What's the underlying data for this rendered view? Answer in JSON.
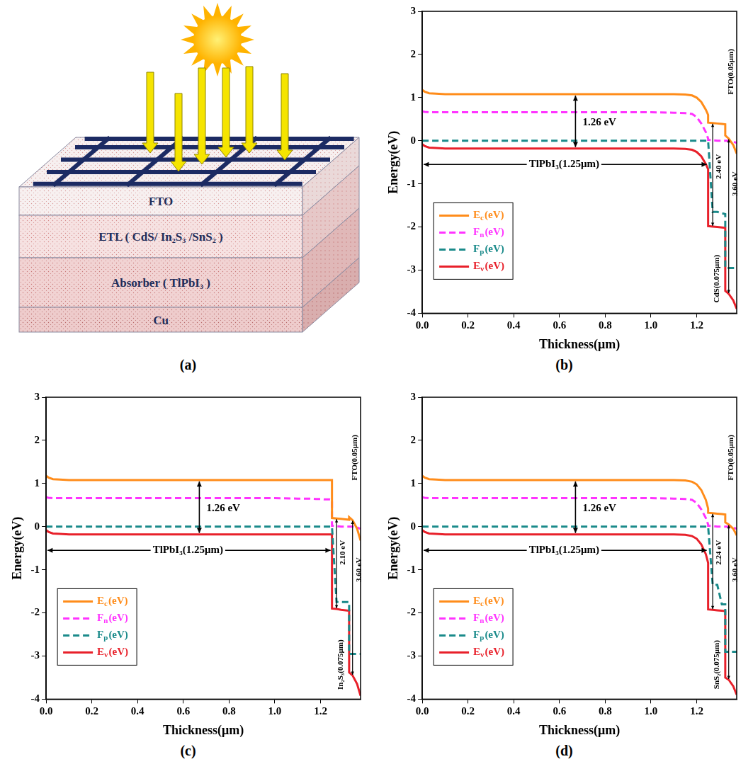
{
  "diagram": {
    "panel_label": "(a)",
    "layers": [
      "FTO",
      "ETL ( CdS/ In₂S₃ /SnS₂ )",
      "Absorber ( TlPbI₃ )",
      "Cu"
    ]
  },
  "chart_data": [
    {
      "type": "line",
      "panel_label": "(b)",
      "x_label": "Thickness(μm)",
      "y_label": "Energy(eV)",
      "x": [
        0,
        0.01,
        0.03,
        0.06,
        0.1,
        1.0,
        1.1,
        1.15,
        1.18,
        1.2,
        1.22,
        1.24,
        1.25,
        1.25,
        1.27,
        1.29,
        1.31,
        1.325,
        1.325,
        1.34,
        1.36,
        1.375
      ],
      "series": [
        {
          "name": "Ec(eV)",
          "color": "#ff8c1a",
          "line_style": "solid",
          "values": [
            1.18,
            1.14,
            1.1,
            1.09,
            1.08,
            1.08,
            1.08,
            1.07,
            1.05,
            1.0,
            0.9,
            0.72,
            0.6,
            0.42,
            0.41,
            0.4,
            0.39,
            0.38,
            0.12,
            0.05,
            -0.1,
            -0.3
          ]
        },
        {
          "name": "Fn(eV)",
          "color": "#ff33ff",
          "line_style": "dashed",
          "values": [
            0.68,
            0.67,
            0.66,
            0.66,
            0.66,
            0.66,
            0.65,
            0.64,
            0.62,
            0.55,
            0.4,
            0.2,
            0.05,
            0.02,
            0.01,
            0,
            0,
            0,
            0,
            0,
            -0.02,
            -0.05
          ]
        },
        {
          "name": "Fp(eV)",
          "color": "#1a8a8a",
          "line_style": "dashed",
          "values": [
            0,
            0,
            0,
            0,
            0,
            0,
            0,
            0,
            0,
            0,
            0,
            0,
            0,
            0,
            -1.65,
            -1.65,
            -1.68,
            -1.7,
            -2.95,
            -2.95,
            -2.95,
            -2.95
          ]
        },
        {
          "name": "Ev(eV)",
          "color": "#e8202a",
          "line_style": "solid",
          "values": [
            -0.08,
            -0.12,
            -0.16,
            -0.17,
            -0.18,
            -0.18,
            -0.18,
            -0.19,
            -0.21,
            -0.26,
            -0.36,
            -0.54,
            -0.66,
            -1.98,
            -1.99,
            -2.0,
            -2.01,
            -2.02,
            -3.48,
            -3.55,
            -3.7,
            -3.9
          ]
        }
      ],
      "xlim": [
        0,
        1.375
      ],
      "xticks": [
        {
          "value": 0,
          "label": "0.0"
        },
        {
          "value": 0.2,
          "label": "0.2"
        },
        {
          "value": 0.4,
          "label": "0.4"
        },
        {
          "value": 0.6,
          "label": "0.6"
        },
        {
          "value": 0.8,
          "label": "0.8"
        },
        {
          "value": 1.0,
          "label": "1.0"
        },
        {
          "value": 1.2,
          "label": "1.2"
        }
      ],
      "ylim": [
        -4,
        3
      ],
      "yticks": [
        -4,
        -3,
        -2,
        -1,
        0,
        1,
        2,
        3
      ],
      "grid": false,
      "legend": "lower left",
      "annotations": {
        "bandgap": "1.26 eV",
        "absorber": "TlPbI₃(1.25μm)",
        "etl": "CdS(0.075μm)",
        "etl_gap": "2.40 eV",
        "fto": "FTO(0.05μm)",
        "fto_gap": "3.60 eV"
      }
    },
    {
      "type": "line",
      "panel_label": "(c)",
      "x_label": "Thickness(μm)",
      "y_label": "Energy(eV)",
      "x": [
        0,
        0.01,
        0.03,
        0.06,
        0.1,
        1.0,
        1.1,
        1.15,
        1.18,
        1.2,
        1.22,
        1.24,
        1.25,
        1.25,
        1.27,
        1.29,
        1.31,
        1.325,
        1.325,
        1.34,
        1.36,
        1.375
      ],
      "series": [
        {
          "name": "Ec(eV)",
          "color": "#ff8c1a",
          "line_style": "solid",
          "values": [
            1.18,
            1.14,
            1.1,
            1.09,
            1.08,
            1.08,
            1.08,
            1.08,
            1.08,
            1.08,
            1.08,
            1.08,
            1.08,
            0.2,
            0.19,
            0.18,
            0.17,
            0.16,
            0.22,
            0.15,
            -0.05,
            -0.32
          ]
        },
        {
          "name": "Fn(eV)",
          "color": "#ff33ff",
          "line_style": "dashed",
          "values": [
            0.68,
            0.67,
            0.66,
            0.66,
            0.66,
            0.66,
            0.65,
            0.65,
            0.64,
            0.64,
            0.63,
            0.63,
            0.62,
            0.02,
            0.01,
            0,
            0,
            0,
            0,
            0,
            -0.02,
            -0.05
          ]
        },
        {
          "name": "Fp(eV)",
          "color": "#1a8a8a",
          "line_style": "dashed",
          "values": [
            0,
            0,
            0,
            0,
            0,
            0,
            0,
            0,
            0,
            0,
            0,
            0,
            0,
            0,
            -1.75,
            -1.75,
            -1.75,
            -1.75,
            -2.95,
            -2.95,
            -2.95,
            -2.95
          ]
        },
        {
          "name": "Ev(eV)",
          "color": "#e8202a",
          "line_style": "solid",
          "values": [
            -0.08,
            -0.12,
            -0.16,
            -0.17,
            -0.18,
            -0.18,
            -0.18,
            -0.18,
            -0.18,
            -0.18,
            -0.18,
            -0.18,
            -0.18,
            -1.9,
            -1.91,
            -1.93,
            -1.94,
            -1.95,
            -3.38,
            -3.45,
            -3.65,
            -3.92
          ]
        }
      ],
      "xlim": [
        0,
        1.375
      ],
      "xticks": [
        {
          "value": 0,
          "label": "0.0"
        },
        {
          "value": 0.2,
          "label": "0.2"
        },
        {
          "value": 0.4,
          "label": "0.4"
        },
        {
          "value": 0.6,
          "label": "0.6"
        },
        {
          "value": 0.8,
          "label": "0.8"
        },
        {
          "value": 1.0,
          "label": "1.0"
        },
        {
          "value": 1.2,
          "label": "1.2"
        }
      ],
      "ylim": [
        -4,
        3
      ],
      "yticks": [
        -4,
        -3,
        -2,
        -1,
        0,
        1,
        2,
        3
      ],
      "grid": false,
      "legend": "lower left",
      "annotations": {
        "bandgap": "1.26 eV",
        "absorber": "TlPbI₃(1.25μm)",
        "etl": "In₂S₃(0.075μm)",
        "etl_gap": "2.10 eV",
        "fto": "FTO(0.05μm)",
        "fto_gap": "3.60 eV"
      }
    },
    {
      "type": "line",
      "panel_label": "(d)",
      "x_label": "Thickness(μm)",
      "y_label": "Energy(eV)",
      "x": [
        0,
        0.01,
        0.03,
        0.06,
        0.1,
        1.0,
        1.1,
        1.15,
        1.18,
        1.2,
        1.22,
        1.24,
        1.25,
        1.25,
        1.27,
        1.29,
        1.31,
        1.325,
        1.325,
        1.34,
        1.36,
        1.375
      ],
      "series": [
        {
          "name": "Ec(eV)",
          "color": "#ff8c1a",
          "line_style": "solid",
          "values": [
            1.18,
            1.14,
            1.1,
            1.09,
            1.08,
            1.08,
            1.08,
            1.07,
            1.04,
            0.98,
            0.85,
            0.62,
            0.42,
            0.32,
            0.31,
            0.3,
            0.29,
            0.28,
            0.1,
            0.05,
            -0.05,
            -0.2
          ]
        },
        {
          "name": "Fn(eV)",
          "color": "#ff33ff",
          "line_style": "dashed",
          "values": [
            0.68,
            0.67,
            0.66,
            0.66,
            0.66,
            0.66,
            0.65,
            0.64,
            0.62,
            0.55,
            0.4,
            0.2,
            0.05,
            0.02,
            0.01,
            0,
            0,
            0,
            0,
            0,
            -0.02,
            -0.05
          ]
        },
        {
          "name": "Fp(eV)",
          "color": "#1a8a8a",
          "line_style": "dashed",
          "values": [
            0,
            0,
            0,
            0,
            0,
            0,
            0,
            0,
            0,
            0,
            0,
            0,
            0,
            0,
            -1.35,
            -1.35,
            -1.8,
            -1.8,
            -2.9,
            -2.9,
            -2.9,
            -2.9
          ]
        },
        {
          "name": "Ev(eV)",
          "color": "#e8202a",
          "line_style": "solid",
          "values": [
            -0.08,
            -0.12,
            -0.16,
            -0.17,
            -0.18,
            -0.18,
            -0.18,
            -0.19,
            -0.22,
            -0.28,
            -0.41,
            -0.64,
            -0.84,
            -1.92,
            -1.93,
            -1.94,
            -1.95,
            -1.96,
            -3.5,
            -3.55,
            -3.7,
            -3.9
          ]
        }
      ],
      "xlim": [
        0,
        1.375
      ],
      "xticks": [
        {
          "value": 0,
          "label": "0.0"
        },
        {
          "value": 0.2,
          "label": "0.2"
        },
        {
          "value": 0.4,
          "label": "0.4"
        },
        {
          "value": 0.6,
          "label": "0.6"
        },
        {
          "value": 0.8,
          "label": "0.8"
        },
        {
          "value": 1.0,
          "label": "1.0"
        },
        {
          "value": 1.2,
          "label": "1.2"
        }
      ],
      "ylim": [
        -4,
        3
      ],
      "yticks": [
        -4,
        -3,
        -2,
        -1,
        0,
        1,
        2,
        3
      ],
      "grid": false,
      "legend": "lower left",
      "annotations": {
        "bandgap": "1.26 eV",
        "absorber": "TlPbI₃(1.25μm)",
        "etl": "SnS₂(0.075μm)",
        "etl_gap": "2.24 eV",
        "fto": "FTO(0.05μm)",
        "fto_gap": "3.60 eV"
      }
    }
  ]
}
